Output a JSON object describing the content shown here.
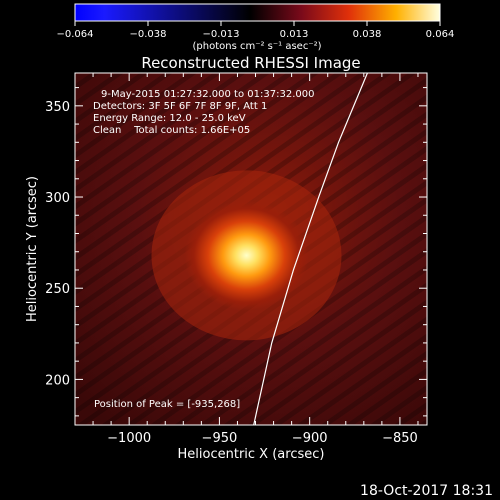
{
  "colorbar": {
    "ticks": [
      "−0.064",
      "−0.038",
      "−0.013",
      "0.013",
      "0.038",
      "0.064"
    ],
    "units": "(photons cm⁻² s⁻¹ asec⁻²)",
    "range": [
      -0.064,
      0.064
    ],
    "colors": [
      "#0000ff",
      "#000000",
      "#8b0000",
      "#ff4500",
      "#ffd700",
      "#ffffff"
    ]
  },
  "annotations": {
    "time_range": "9-May-2015 01:27:32.000 to 01:37:32.000",
    "detectors": "Detectors: 3F 5F 6F 7F 8F 9F, Att 1",
    "energy": "Energy Range: 12.0 - 25.0 keV",
    "clean": "Clean    Total counts: 1.66E+05",
    "peak": "Position of Peak = [-935,268]"
  },
  "footer": {
    "timestamp": "18-Oct-2017 18:31"
  },
  "chart_data": {
    "type": "heatmap",
    "title": "Reconstructed RHESSI Image",
    "xlabel": "Heliocentric X (arcsec)",
    "ylabel": "Heliocentric Y (arcsec)",
    "xlim": [
      -1030,
      -835
    ],
    "ylim": [
      175,
      368
    ],
    "xticks": [
      -1000,
      -950,
      -900,
      -850
    ],
    "xtick_labels": [
      "−1000",
      "−950",
      "−900",
      "−850"
    ],
    "yticks": [
      200,
      250,
      300,
      350
    ],
    "ytick_labels": [
      "200",
      "250",
      "300",
      "350"
    ],
    "peak": {
      "x": -935,
      "y": 268
    },
    "limb_curve": [
      [
        -931,
        175
      ],
      [
        -921,
        220
      ],
      [
        -909,
        260
      ],
      [
        -895,
        300
      ],
      [
        -884,
        330
      ],
      [
        -868,
        368
      ]
    ]
  }
}
